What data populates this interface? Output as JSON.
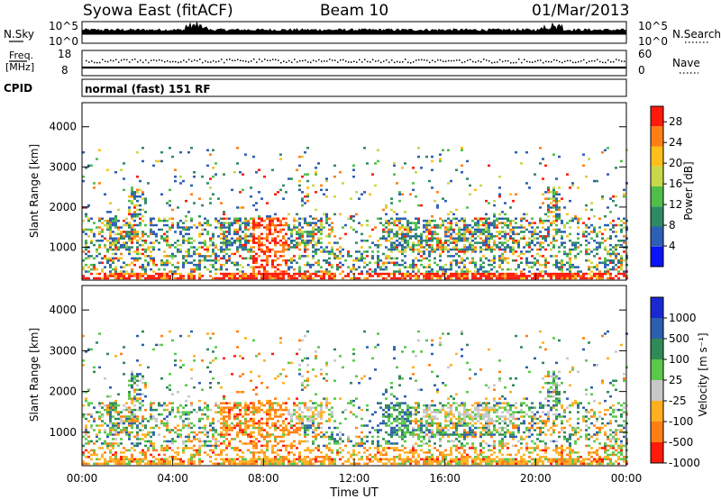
{
  "header": {
    "station": "Syowa East (fitACF)",
    "beam": "Beam 10",
    "date": "01/Mar/2013"
  },
  "strips": {
    "nsky_label": "N.Sky",
    "nsearch_label": "N.Search",
    "nsky_ticks": [
      "10^5",
      "10^0"
    ],
    "nsearch_ticks": [
      "10^5",
      "10^0"
    ],
    "freq_label_1": "Freq.",
    "freq_label_2": "[MHz]",
    "freq_ticks": [
      "18",
      "8"
    ],
    "nave_label": "Nave",
    "nave_ticks": [
      "60",
      "0"
    ],
    "cpid_label": "CPID",
    "cpid_text": "normal (fast) 151 RF"
  },
  "chart_data": [
    {
      "type": "heatmap",
      "name": "power",
      "ylabel": "Slant Range [km]",
      "y_ticks": [
        "1000",
        "2000",
        "3000",
        "4000"
      ],
      "y_tick_values": [
        1000,
        2000,
        3000,
        4000
      ],
      "ylim": [
        180,
        4600
      ],
      "xlim": [
        0,
        24
      ],
      "colorbar_label": "Power [dB]",
      "colorbar_ticks": [
        "4",
        "8",
        "12",
        "16",
        "20",
        "24",
        "28"
      ],
      "colorbar_tick_values": [
        4,
        8,
        12,
        16,
        20,
        24,
        28
      ],
      "colorbar_range": [
        0,
        31
      ],
      "colorbar_colors": [
        "#0a14f5",
        "#2d5fb4",
        "#2f8a63",
        "#4fbf4a",
        "#c8d84a",
        "#ffbf1a",
        "#ff7f14",
        "#ff1a0a"
      ]
    },
    {
      "type": "heatmap",
      "name": "velocity",
      "ylabel": "Slant Range [km]",
      "y_ticks": [
        "1000",
        "2000",
        "3000",
        "4000"
      ],
      "y_tick_values": [
        1000,
        2000,
        3000,
        4000
      ],
      "ylim": [
        180,
        4600
      ],
      "xlim": [
        0,
        24
      ],
      "xlabel": "Time UT",
      "x_ticks": [
        "00:00",
        "04:00",
        "08:00",
        "12:00",
        "16:00",
        "20:00",
        "00:00"
      ],
      "x_tick_values": [
        0,
        4,
        8,
        12,
        16,
        20,
        24
      ],
      "colorbar_label": "Velocity [m s⁻¹]",
      "colorbar_ticks": [
        "1000",
        "500",
        "100",
        "25",
        "-25",
        "-100",
        "-500",
        "-1000"
      ],
      "colorbar_colors": [
        "#1a2ad0",
        "#2e5fae",
        "#2f8a55",
        "#5ac84a",
        "#c8c8c8",
        "#ffb020",
        "#ff7f14",
        "#ff1a0a"
      ]
    }
  ]
}
